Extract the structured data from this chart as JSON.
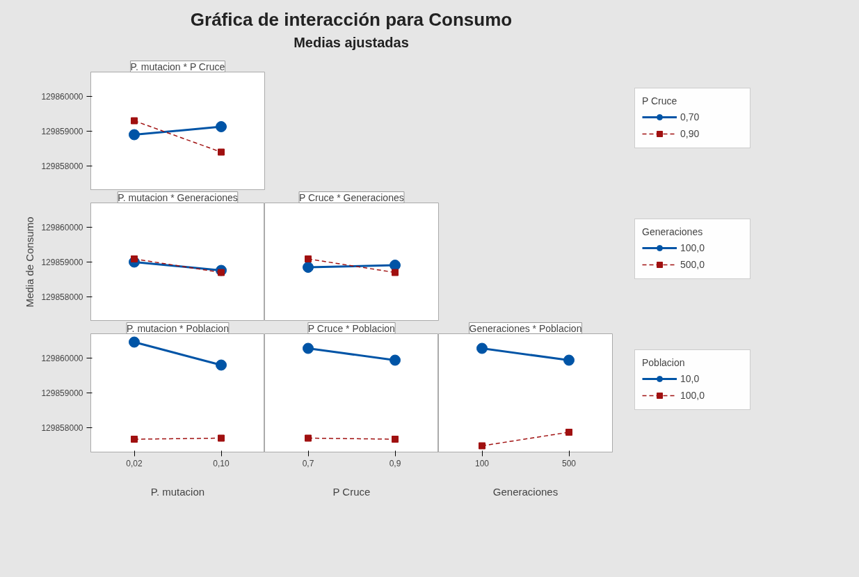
{
  "chart_data": [
    {
      "type": "other",
      "title": "Gráfica de interacción para Consumo",
      "subtitle": "Medias ajustadas"
    },
    {
      "type": "line",
      "title": "P. mutacion * P Cruce",
      "categories": [
        "0,02",
        "0,10"
      ],
      "ylim": [
        129857300,
        129860700
      ],
      "yticks": [
        129858000,
        129859000,
        129860000
      ],
      "tick_labels": "y",
      "grid": false,
      "legend": "right",
      "legend_title": "P Cruce",
      "series": [
        {
          "name": "0,70",
          "color": "#0054a6",
          "marker": "circle",
          "line_style": "solid",
          "values": [
            129858900,
            129859130
          ]
        },
        {
          "name": "0,90",
          "color": "#a01010",
          "marker": "square",
          "line_style": "dashed",
          "values": [
            129859300,
            129858400
          ]
        }
      ]
    },
    {
      "type": "line",
      "title": "P. mutacion * Generaciones",
      "ylabel": "Media de Consumo",
      "categories": [
        "0,02",
        "0,10"
      ],
      "ylim": [
        129857300,
        129860700
      ],
      "yticks": [
        129858000,
        129859000,
        129860000
      ],
      "tick_labels": "y",
      "grid": false,
      "series": [
        {
          "color": "#0054a6",
          "marker": "circle",
          "line_style": "solid",
          "values": [
            129859000,
            129858760
          ]
        },
        {
          "color": "#a01010",
          "marker": "square",
          "line_style": "dashed",
          "values": [
            129859090,
            129858700
          ]
        }
      ]
    },
    {
      "type": "line",
      "title": "P Cruce * Generaciones",
      "categories": [
        "0,7",
        "0,9"
      ],
      "ylim": [
        129857300,
        129860700
      ],
      "yticks": [
        129858000,
        129859000,
        129860000
      ],
      "tick_labels": false,
      "grid": false,
      "legend": "right",
      "legend_title": "Generaciones",
      "series": [
        {
          "name": "100,0",
          "color": "#0054a6",
          "marker": "circle",
          "line_style": "solid",
          "values": [
            129858850,
            129858910
          ]
        },
        {
          "name": "500,0",
          "color": "#a01010",
          "marker": "square",
          "line_style": "dashed",
          "values": [
            129859090,
            129858700
          ]
        }
      ]
    },
    {
      "type": "line",
      "title": "P. mutacion * Poblacion",
      "xlabel": "P. mutacion",
      "categories": [
        "0,02",
        "0,10"
      ],
      "ylim": [
        129857300,
        129860700
      ],
      "yticks": [
        129858000,
        129859000,
        129860000
      ],
      "grid": false,
      "series": [
        {
          "color": "#0054a6",
          "marker": "circle",
          "line_style": "solid",
          "values": [
            129860460,
            129859800
          ]
        },
        {
          "color": "#a01010",
          "marker": "square",
          "line_style": "dashed",
          "values": [
            129857670,
            129857700
          ]
        }
      ]
    },
    {
      "type": "line",
      "title": "P Cruce * Poblacion",
      "xlabel": "P Cruce",
      "categories": [
        "0,7",
        "0,9"
      ],
      "ylim": [
        129857300,
        129860700
      ],
      "yticks": [
        129858000,
        129859000,
        129860000
      ],
      "tick_labels": "x",
      "grid": false,
      "series": [
        {
          "color": "#0054a6",
          "marker": "circle",
          "line_style": "solid",
          "values": [
            129860280,
            129859940
          ]
        },
        {
          "color": "#a01010",
          "marker": "square",
          "line_style": "dashed",
          "values": [
            129857700,
            129857670
          ]
        }
      ]
    },
    {
      "type": "line",
      "title": "Generaciones * Poblacion",
      "xlabel": "Generaciones",
      "categories": [
        "100",
        "500"
      ],
      "ylim": [
        129857300,
        129860700
      ],
      "yticks": [
        129858000,
        129859000,
        129860000
      ],
      "tick_labels": "x",
      "grid": false,
      "legend": "right",
      "legend_title": "Poblacion",
      "series": [
        {
          "name": "10,0",
          "color": "#0054a6",
          "marker": "circle",
          "line_style": "solid",
          "values": [
            129860280,
            129859940
          ]
        },
        {
          "name": "100,0",
          "color": "#a01010",
          "marker": "square",
          "line_style": "dashed",
          "values": [
            129857480,
            129857870
          ]
        }
      ]
    }
  ]
}
